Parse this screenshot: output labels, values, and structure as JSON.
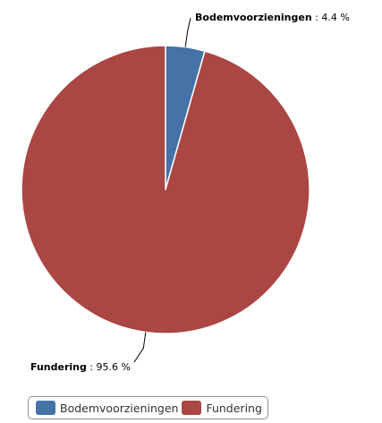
{
  "chart_data": {
    "type": "pie",
    "categories": [
      "Bodemvoorzieningen",
      "Fundering"
    ],
    "values": [
      4.4,
      95.6
    ],
    "unit": "%",
    "data_labels": [
      {
        "category": "Bodemvoorzieningen",
        "value_text": "4.4 %"
      },
      {
        "category": "Fundering",
        "value_text": "95.6 %"
      }
    ],
    "colors": [
      "#4572a7",
      "#aa4643"
    ],
    "legend_position": "bottom-left"
  },
  "legend": {
    "items": [
      {
        "label": "Bodemvoorzieningen",
        "color": "#4572a7"
      },
      {
        "label": "Fundering",
        "color": "#aa4643"
      }
    ]
  }
}
